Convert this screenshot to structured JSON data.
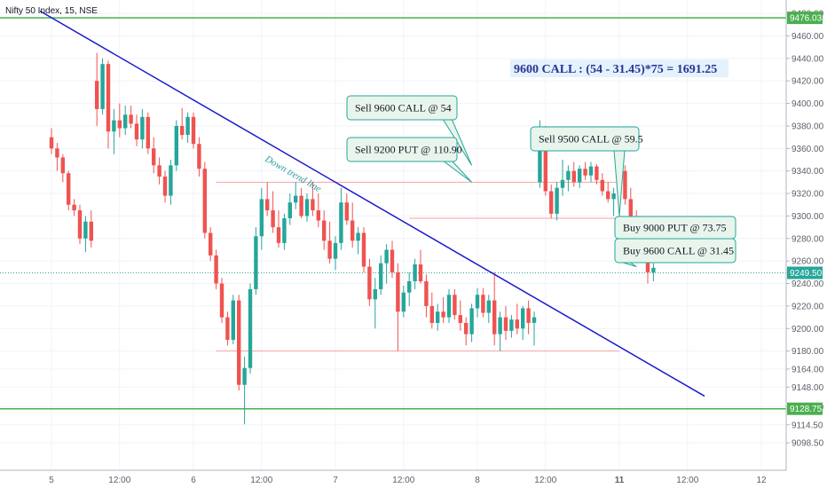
{
  "header": {
    "symbol_title": "Nifty 50 Index, 15, NSE"
  },
  "colors": {
    "up": "#26a69a",
    "down": "#ef5350",
    "trendline": "#1a1acc",
    "support_green": "#4caf50",
    "level_red": "#f4a3a3",
    "note_border": "#26a69a",
    "note_fill": "#e8f5ec",
    "summary_fill": "#e3f2fd",
    "summary_text": "#283593"
  },
  "chart_data": {
    "type": "candlestick",
    "title": "Nifty 50 Index, 15, NSE",
    "ylim": [
      9082,
      9484
    ],
    "y_ticks": [
      9098.5,
      9114.5,
      9130.5,
      9148,
      9164,
      9180,
      9200,
      9220,
      9240,
      9260,
      9280,
      9300,
      9320,
      9340,
      9360,
      9380,
      9400,
      9420,
      9440,
      9460,
      9480
    ],
    "y_tick_labels": [
      "9098.50",
      "9114.50",
      "9130.50",
      "9148.00",
      "9164.00",
      "9180.00",
      "9200.00",
      "9220.00",
      "9240.00",
      "9260.00",
      "9280.00",
      "9300.00",
      "9320.00",
      "9340.00",
      "9360.00",
      "9380.00",
      "9400.00",
      "9420.00",
      "9440.00",
      "9460.00",
      "9480.00"
    ],
    "x_ticks": [
      {
        "label": "5",
        "bar": 0
      },
      {
        "label": "12:00",
        "bar": 12
      },
      {
        "label": "6",
        "bar": 25
      },
      {
        "label": "12:00",
        "bar": 37
      },
      {
        "label": "7",
        "bar": 50
      },
      {
        "label": "12:00",
        "bar": 62
      },
      {
        "label": "8",
        "bar": 75
      },
      {
        "label": "12:00",
        "bar": 87
      },
      {
        "label": "11",
        "bar": 100
      },
      {
        "label": "12:00",
        "bar": 112
      },
      {
        "label": "12",
        "bar": 125
      }
    ],
    "candles": [
      [
        9370,
        9378,
        9355,
        9360
      ],
      [
        9360,
        9365,
        9340,
        9352
      ],
      [
        9352,
        9355,
        9330,
        9338
      ],
      [
        9338,
        9340,
        9305,
        9310
      ],
      [
        9310,
        9315,
        9300,
        9305
      ],
      [
        9305,
        9310,
        9275,
        9280
      ],
      [
        9280,
        9300,
        9268,
        9295
      ],
      [
        9295,
        9305,
        9272,
        9278
      ],
      [
        9420,
        9445,
        9380,
        9395
      ],
      [
        9395,
        9440,
        9390,
        9435
      ],
      [
        9435,
        9438,
        9360,
        9375
      ],
      [
        9375,
        9395,
        9355,
        9385
      ],
      [
        9385,
        9400,
        9370,
        9378
      ],
      [
        9378,
        9398,
        9372,
        9390
      ],
      [
        9390,
        9398,
        9378,
        9382
      ],
      [
        9382,
        9390,
        9362,
        9368
      ],
      [
        9368,
        9395,
        9360,
        9388
      ],
      [
        9388,
        9392,
        9355,
        9360
      ],
      [
        9360,
        9370,
        9338,
        9345
      ],
      [
        9345,
        9352,
        9328,
        9335
      ],
      [
        9335,
        9340,
        9312,
        9318
      ],
      [
        9318,
        9350,
        9310,
        9345
      ],
      [
        9345,
        9385,
        9340,
        9380
      ],
      [
        9380,
        9396,
        9368,
        9372
      ],
      [
        9372,
        9392,
        9365,
        9388
      ],
      [
        9388,
        9392,
        9360,
        9364
      ],
      [
        9364,
        9370,
        9335,
        9342
      ],
      [
        9342,
        9348,
        9280,
        9285
      ],
      [
        9285,
        9290,
        9260,
        9265
      ],
      [
        9265,
        9270,
        9235,
        9240
      ],
      [
        9240,
        9245,
        9205,
        9210
      ],
      [
        9210,
        9215,
        9185,
        9190
      ],
      [
        9190,
        9230,
        9186,
        9225
      ],
      [
        9225,
        9230,
        9145,
        9150
      ],
      [
        9150,
        9175,
        9115,
        9165
      ],
      [
        9165,
        9240,
        9160,
        9235
      ],
      [
        9235,
        9290,
        9230,
        9282
      ],
      [
        9282,
        9325,
        9270,
        9315
      ],
      [
        9315,
        9330,
        9300,
        9305
      ],
      [
        9305,
        9322,
        9285,
        9290
      ],
      [
        9290,
        9305,
        9272,
        9276
      ],
      [
        9276,
        9302,
        9270,
        9298
      ],
      [
        9298,
        9320,
        9292,
        9312
      ],
      [
        9312,
        9330,
        9306,
        9318
      ],
      [
        9318,
        9325,
        9298,
        9300
      ],
      [
        9300,
        9320,
        9295,
        9315
      ],
      [
        9315,
        9330,
        9300,
        9305
      ],
      [
        9305,
        9320,
        9290,
        9296
      ],
      [
        9296,
        9305,
        9270,
        9278
      ],
      [
        9278,
        9295,
        9258,
        9262
      ],
      [
        9262,
        9282,
        9252,
        9276
      ],
      [
        9276,
        9325,
        9270,
        9312
      ],
      [
        9312,
        9320,
        9292,
        9296
      ],
      [
        9296,
        9312,
        9272,
        9278
      ],
      [
        9278,
        9290,
        9266,
        9285
      ],
      [
        9285,
        9290,
        9250,
        9255
      ],
      [
        9255,
        9262,
        9220,
        9226
      ],
      [
        9226,
        9245,
        9200,
        9235
      ],
      [
        9235,
        9265,
        9230,
        9258
      ],
      [
        9258,
        9275,
        9240,
        9270
      ],
      [
        9270,
        9278,
        9245,
        9250
      ],
      [
        9250,
        9258,
        9180,
        9215
      ],
      [
        9215,
        9238,
        9210,
        9232
      ],
      [
        9232,
        9250,
        9220,
        9242
      ],
      [
        9242,
        9262,
        9235,
        9257
      ],
      [
        9257,
        9270,
        9240,
        9242
      ],
      [
        9242,
        9248,
        9210,
        9220
      ],
      [
        9220,
        9232,
        9200,
        9205
      ],
      [
        9205,
        9222,
        9198,
        9215
      ],
      [
        9215,
        9228,
        9205,
        9210
      ],
      [
        9210,
        9235,
        9205,
        9230
      ],
      [
        9230,
        9235,
        9208,
        9212
      ],
      [
        9212,
        9225,
        9198,
        9205
      ],
      [
        9205,
        9210,
        9185,
        9195
      ],
      [
        9195,
        9222,
        9188,
        9218
      ],
      [
        9218,
        9236,
        9210,
        9230
      ],
      [
        9230,
        9236,
        9210,
        9214
      ],
      [
        9214,
        9230,
        9205,
        9225
      ],
      [
        9225,
        9250,
        9185,
        9195
      ],
      [
        9195,
        9215,
        9180,
        9210
      ],
      [
        9210,
        9220,
        9190,
        9198
      ],
      [
        9198,
        9212,
        9192,
        9208
      ],
      [
        9208,
        9222,
        9195,
        9200
      ],
      [
        9200,
        9220,
        9190,
        9218
      ],
      [
        9218,
        9225,
        9195,
        9205
      ],
      [
        9205,
        9215,
        9185,
        9210
      ],
      [
        9330,
        9385,
        9325,
        9375
      ],
      [
        9375,
        9380,
        9318,
        9322
      ],
      [
        9322,
        9328,
        9298,
        9302
      ],
      [
        9302,
        9330,
        9296,
        9325
      ],
      [
        9325,
        9350,
        9318,
        9332
      ],
      [
        9332,
        9345,
        9322,
        9340
      ],
      [
        9340,
        9348,
        9326,
        9330
      ],
      [
        9330,
        9345,
        9325,
        9342
      ],
      [
        9342,
        9348,
        9332,
        9336
      ],
      [
        9336,
        9348,
        9330,
        9344
      ],
      [
        9344,
        9346,
        9328,
        9332
      ],
      [
        9332,
        9338,
        9318,
        9322
      ],
      [
        9322,
        9330,
        9312,
        9315
      ],
      [
        9315,
        9325,
        9300,
        9320
      ],
      [
        9320,
        9345,
        9315,
        9340
      ],
      [
        9340,
        9345,
        9310,
        9315
      ],
      [
        9315,
        9325,
        9295,
        9300
      ],
      [
        9300,
        9305,
        9285,
        9290
      ],
      [
        9290,
        9295,
        9265,
        9270
      ],
      [
        9270,
        9275,
        9240,
        9250
      ],
      [
        9250,
        9258,
        9242,
        9254
      ]
    ],
    "horizontal_lines": [
      {
        "name": "upper-support",
        "value": 9476.03,
        "label": "9476.03",
        "color": "green",
        "extent": "full"
      },
      {
        "name": "lower-support",
        "value": 9128.75,
        "label": "9128.75",
        "color": "green",
        "extent": "full"
      },
      {
        "name": "current-price",
        "value": 9249.5,
        "label": "9249.50",
        "color": "teal-dotted",
        "extent": "full"
      },
      {
        "name": "resistance-9330",
        "value": 9330,
        "color": "red",
        "extent": "day5-to-day8"
      },
      {
        "name": "level-9298",
        "value": 9298,
        "color": "red",
        "extent": "day8"
      },
      {
        "name": "support-9180",
        "value": 9180,
        "color": "red",
        "extent": "day5-to-day8"
      }
    ],
    "trendline": {
      "label": "Down trend line",
      "start": {
        "bar": -2,
        "value": 9482
      },
      "end": {
        "bar": 115,
        "value": 9140
      }
    },
    "annotations": [
      {
        "text": "Sell 9600 CALL @ 54",
        "target": {
          "bar": 74,
          "value": 9345
        }
      },
      {
        "text": "Sell 9200 PUT @ 110.90",
        "target": {
          "bar": 74,
          "value": 9330
        }
      },
      {
        "text": "Sell 9500 CALL @ 59.5",
        "target": {
          "bar": 100,
          "value": 9300
        }
      },
      {
        "text": "Buy 9000 PUT @ 73.75",
        "target": {
          "bar": 103,
          "value": 9262
        }
      },
      {
        "text": "Buy 9600 CALL @ 31.45",
        "target": {
          "bar": 103,
          "value": 9255
        }
      }
    ],
    "summary": "9600 CALL : (54 - 31.45)*75 = 1691.25"
  }
}
